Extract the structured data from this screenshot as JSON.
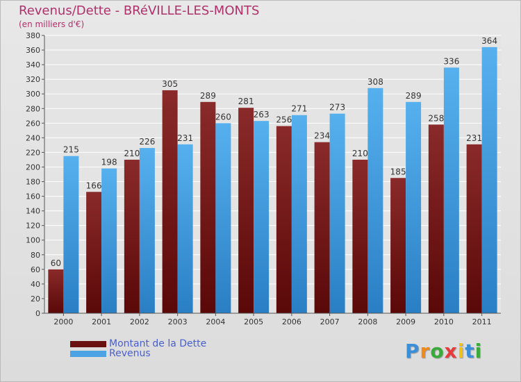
{
  "title": "Revenus/Dette - BRéVILLE-LES-MONTS",
  "subtitle": "(en milliers d'€)",
  "colors": {
    "dette": "#7a1c1c",
    "revenus": "#4ba3e3",
    "title": "#b0306a",
    "legend_text": "#4a5fd0"
  },
  "legend": {
    "dette_label": "Montant de la Dette",
    "revenus_label": "Revenus"
  },
  "logo": {
    "letters": [
      "P",
      "r",
      "o",
      "x",
      "i",
      "t",
      "i"
    ],
    "colors": [
      "#3a8fd8",
      "#f28a1a",
      "#3aaa3a",
      "#e83a3a",
      "#f2c21a",
      "#3a8fd8",
      "#3aaa3a"
    ]
  },
  "chart_data": {
    "type": "bar",
    "categories": [
      "2000",
      "2001",
      "2002",
      "2003",
      "2004",
      "2005",
      "2006",
      "2007",
      "2008",
      "2009",
      "2010",
      "2011"
    ],
    "series": [
      {
        "name": "Montant de la Dette",
        "values": [
          60,
          166,
          210,
          305,
          289,
          281,
          256,
          234,
          210,
          185,
          258,
          231
        ]
      },
      {
        "name": "Revenus",
        "values": [
          215,
          198,
          226,
          231,
          260,
          263,
          271,
          273,
          308,
          289,
          336,
          364
        ]
      }
    ],
    "ylim": [
      0,
      380
    ],
    "ytick_step": 20,
    "grid": true
  }
}
